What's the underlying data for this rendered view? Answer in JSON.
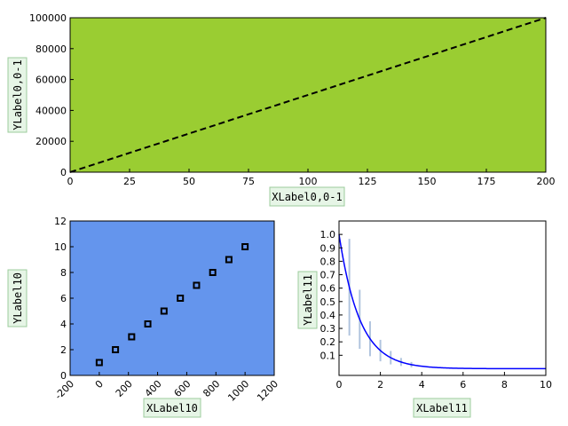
{
  "chart_data": [
    {
      "type": "line",
      "title": "",
      "xlabel": "XLabel0,0-1",
      "ylabel": "YLabel0,0-1",
      "xlim": [
        0,
        200
      ],
      "ylim": [
        0,
        100000
      ],
      "xticks": [
        0,
        25,
        50,
        75,
        100,
        125,
        150,
        175,
        200
      ],
      "yticks": [
        0,
        20000,
        40000,
        60000,
        80000,
        100000
      ],
      "background": "#9acd32",
      "grid": false,
      "series": [
        {
          "style": "dashed",
          "color": "#000000",
          "x": [
            0,
            200
          ],
          "y": [
            0,
            100000
          ]
        }
      ]
    },
    {
      "type": "scatter",
      "title": "",
      "xlabel": "XLabel10",
      "ylabel": "YLabel10",
      "xlim": [
        -200,
        1200
      ],
      "ylim": [
        0,
        12
      ],
      "xticks": [
        -200,
        0,
        200,
        400,
        600,
        800,
        1000,
        1200
      ],
      "yticks": [
        0,
        2,
        4,
        6,
        8,
        10,
        12
      ],
      "xtick_rotation": 45,
      "background": "#6495ed",
      "grid": false,
      "series": [
        {
          "marker": "square",
          "color": "#000000",
          "x": [
            0,
            111,
            222,
            333,
            444,
            556,
            667,
            778,
            889,
            1000
          ],
          "y": [
            1,
            2,
            3,
            4,
            5,
            6,
            7,
            8,
            9,
            10
          ]
        }
      ]
    },
    {
      "type": "line",
      "title": "",
      "xlabel": "XLabel11",
      "ylabel": "YLabel11",
      "xlim": [
        0,
        10
      ],
      "ylim": [
        -0.05,
        1.1
      ],
      "xticks": [
        0,
        2,
        4,
        6,
        8,
        10
      ],
      "yticks": [
        0.1,
        0.2,
        0.3,
        0.4,
        0.5,
        0.6,
        0.7,
        0.8,
        0.9,
        1.0
      ],
      "background": "#ffffff",
      "grid": false,
      "series": [
        {
          "function": "exp(-x)",
          "color": "#0000ff",
          "x_range": [
            0,
            10
          ]
        }
      ],
      "error_bars": {
        "color": "#b0c4de",
        "x": [
          0.5,
          1.0,
          1.5,
          2.0,
          2.5,
          3.0,
          3.5
        ],
        "y": [
          0.607,
          0.368,
          0.223,
          0.135,
          0.082,
          0.05,
          0.03
        ],
        "err": [
          0.36,
          0.22,
          0.13,
          0.08,
          0.05,
          0.03,
          0.02
        ]
      }
    }
  ]
}
